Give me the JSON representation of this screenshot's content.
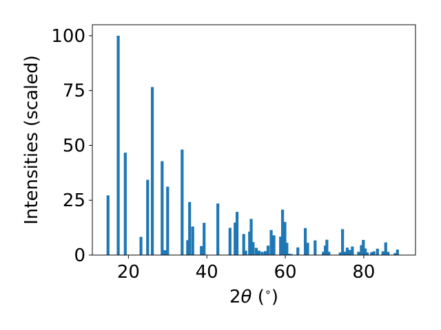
{
  "chart_data": {
    "type": "bar",
    "xlabel": "2θ (°)",
    "ylabel": "Intensities (scaled)",
    "xlim": [
      10.8,
      93.2
    ],
    "ylim": [
      0,
      105
    ],
    "grid": false,
    "bar_color": "#1f77b4",
    "xticks": [
      20,
      40,
      60,
      80
    ],
    "yticks": [
      0,
      25,
      50,
      75,
      100
    ],
    "x": [
      14.8,
      17.4,
      19.2,
      23.2,
      24.9,
      26.1,
      28.6,
      29.3,
      30.0,
      33.7,
      35.1,
      35.6,
      36.4,
      38.6,
      39.3,
      42.8,
      45.9,
      47.2,
      47.7,
      49.4,
      49.9,
      50.9,
      51.3,
      51.8,
      52.6,
      53.3,
      54.1,
      54.9,
      55.6,
      56.4,
      57.1,
      58.8,
      59.3,
      59.9,
      60.4,
      61.0,
      61.5,
      63.2,
      65.1,
      65.7,
      67.6,
      69.7,
      70.2,
      70.6,
      71.1,
      74.0,
      74.6,
      75.1,
      75.8,
      76.4,
      77.1,
      78.7,
      79.4,
      79.9,
      80.4,
      80.9,
      82.0,
      82.6,
      83.5,
      84.9,
      85.6,
      86.2,
      88.0,
      88.6
    ],
    "values": [
      27.2,
      100.0,
      46.7,
      8.3,
      34.3,
      76.6,
      42.8,
      2.2,
      31.2,
      48.1,
      6.8,
      24.2,
      13.0,
      4.1,
      14.7,
      23.5,
      12.4,
      14.8,
      19.7,
      9.6,
      2.0,
      10.7,
      16.5,
      5.9,
      3.3,
      2.0,
      1.5,
      1.8,
      4.3,
      11.4,
      9.0,
      8.4,
      20.7,
      15.1,
      5.6,
      0.6,
      0.5,
      3.5,
      12.3,
      5.6,
      6.7,
      1.5,
      4.3,
      7.0,
      1.5,
      1.2,
      11.8,
      1.5,
      3.4,
      2.3,
      3.9,
      1.5,
      4.5,
      6.9,
      3.0,
      1.2,
      1.3,
      1.7,
      2.9,
      1.7,
      5.8,
      1.5,
      0.9,
      2.5
    ]
  }
}
